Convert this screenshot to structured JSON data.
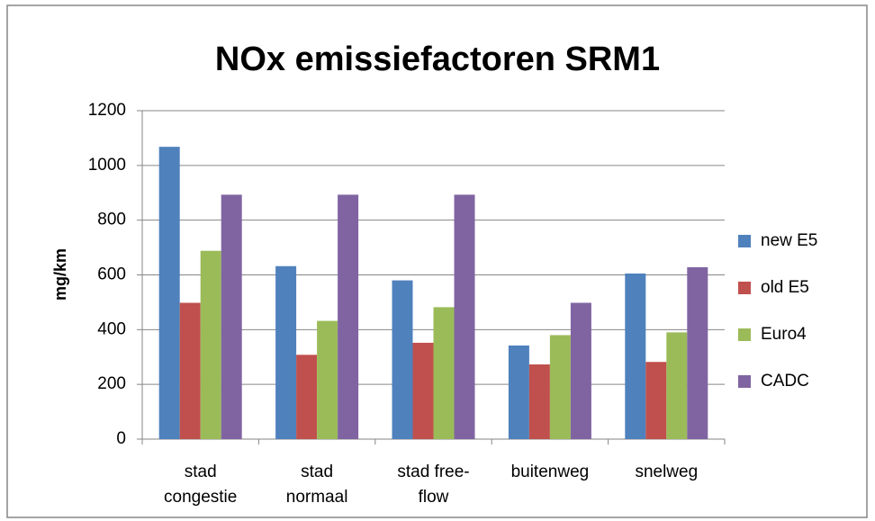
{
  "chart_data": {
    "type": "bar",
    "title": "NOx emissiefactoren SRM1",
    "y_label": "mg/km",
    "categories": [
      [
        "stad",
        "congestie"
      ],
      [
        "stad",
        "normaal"
      ],
      [
        "stad free-",
        "flow"
      ],
      [
        "buitenweg"
      ],
      [
        "snelweg"
      ]
    ],
    "series": [
      {
        "name": "new E5",
        "color": "#4f81bd",
        "values": [
          1068,
          632,
          580,
          342,
          605
        ]
      },
      {
        "name": "old E5",
        "color": "#c0504d",
        "values": [
          498,
          308,
          352,
          273,
          282
        ]
      },
      {
        "name": "Euro4",
        "color": "#9bbb59",
        "values": [
          688,
          432,
          482,
          380,
          390
        ]
      },
      {
        "name": "CADC",
        "color": "#8064a2",
        "values": [
          893,
          893,
          893,
          498,
          628
        ]
      }
    ],
    "ylim": [
      0,
      1200
    ],
    "yticks": [
      0,
      200,
      400,
      600,
      800,
      1000,
      1200
    ],
    "grid": true,
    "legend": "right"
  }
}
